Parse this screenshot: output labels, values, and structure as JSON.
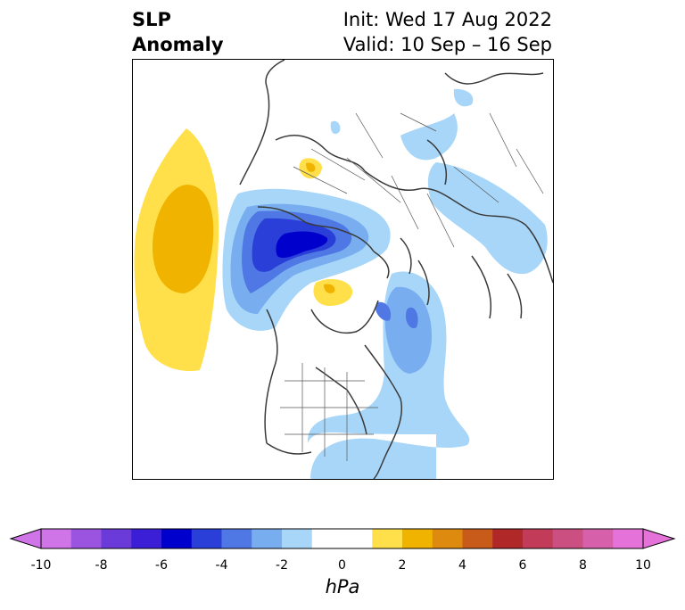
{
  "header": {
    "variable_line1": "SLP",
    "variable_line2": "Anomaly",
    "init_text": "Init: Wed 17 Aug 2022",
    "valid_text": "Valid: 10 Sep – 16 Sep"
  },
  "colorbar": {
    "units": "hPa",
    "tick_labels": [
      "-10",
      "-8",
      "-6",
      "-4",
      "-2",
      "0",
      "2",
      "4",
      "6",
      "8",
      "10"
    ],
    "levels": [
      -10,
      -9,
      -8,
      -7,
      -6,
      -5,
      -4,
      -3,
      -2,
      -1,
      1,
      2,
      3,
      4,
      5,
      6,
      7,
      8,
      9,
      10
    ],
    "colors": [
      "#d075e8",
      "#9b54e0",
      "#6a3bd8",
      "#3b1fd6",
      "#0000cc",
      "#2a3fd8",
      "#4f78e4",
      "#78aef0",
      "#a8d6f8",
      "#ffffff",
      "#ffe04a",
      "#f0b400",
      "#de8a0f",
      "#c85a1a",
      "#b02828",
      "#c23c5a",
      "#cc4f82",
      "#d660aa",
      "#e472d8"
    ],
    "extend_min_color": "#d075e8",
    "extend_max_color": "#e472d8"
  }
}
